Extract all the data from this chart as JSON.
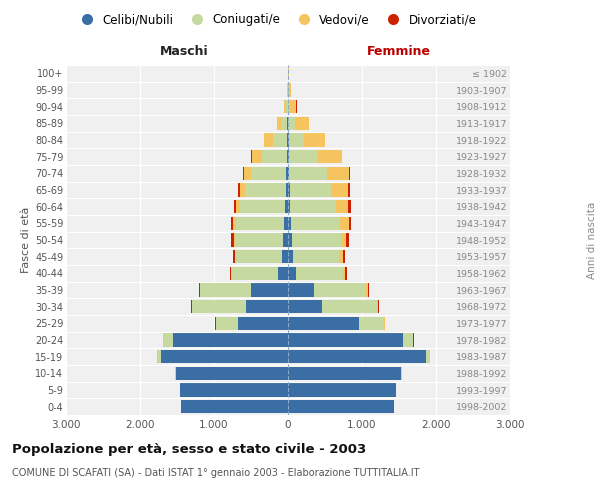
{
  "age_groups": [
    "0-4",
    "5-9",
    "10-14",
    "15-19",
    "20-24",
    "25-29",
    "30-34",
    "35-39",
    "40-44",
    "45-49",
    "50-54",
    "55-59",
    "60-64",
    "65-69",
    "70-74",
    "75-79",
    "80-84",
    "85-89",
    "90-94",
    "95-99",
    "100+"
  ],
  "birth_years": [
    "1998-2002",
    "1993-1997",
    "1988-1992",
    "1983-1987",
    "1978-1982",
    "1973-1977",
    "1968-1972",
    "1963-1967",
    "1958-1962",
    "1953-1957",
    "1948-1952",
    "1943-1947",
    "1938-1942",
    "1933-1937",
    "1928-1932",
    "1923-1927",
    "1918-1922",
    "1913-1917",
    "1908-1912",
    "1903-1907",
    "≤ 1902"
  ],
  "males_celibi": [
    1440,
    1460,
    1510,
    1710,
    1560,
    670,
    570,
    500,
    130,
    80,
    65,
    55,
    40,
    30,
    22,
    18,
    12,
    8,
    5,
    3,
    2
  ],
  "males_coniugati": [
    4,
    5,
    12,
    52,
    125,
    305,
    725,
    685,
    625,
    625,
    645,
    650,
    610,
    545,
    475,
    340,
    185,
    80,
    28,
    10,
    1
  ],
  "males_vedovi": [
    0,
    0,
    0,
    3,
    4,
    4,
    5,
    6,
    12,
    16,
    22,
    32,
    52,
    72,
    92,
    135,
    125,
    58,
    18,
    5,
    0
  ],
  "males_divorziati": [
    0,
    0,
    0,
    1,
    4,
    5,
    6,
    12,
    16,
    26,
    32,
    32,
    25,
    22,
    15,
    10,
    5,
    2,
    1,
    0,
    0
  ],
  "females_nubili": [
    1435,
    1455,
    1525,
    1860,
    1555,
    960,
    455,
    350,
    105,
    65,
    55,
    42,
    30,
    22,
    18,
    14,
    10,
    6,
    4,
    2,
    1
  ],
  "females_coniugate": [
    4,
    5,
    12,
    56,
    132,
    335,
    745,
    705,
    635,
    625,
    655,
    665,
    625,
    565,
    515,
    385,
    200,
    90,
    28,
    10,
    1
  ],
  "females_vedove": [
    0,
    0,
    0,
    4,
    6,
    12,
    16,
    22,
    32,
    52,
    72,
    112,
    162,
    225,
    295,
    325,
    285,
    185,
    82,
    22,
    5
  ],
  "females_divorziate": [
    0,
    0,
    0,
    1,
    4,
    6,
    12,
    16,
    22,
    32,
    36,
    36,
    32,
    26,
    16,
    12,
    5,
    2,
    1,
    0,
    0
  ],
  "colors_celibi": "#3A6EA5",
  "colors_coniugati": "#C5D9A0",
  "colors_vedovi": "#F5C45E",
  "colors_divorziati": "#CC2200",
  "xlim": 3000,
  "xticks": [
    -3000,
    -2000,
    -1000,
    0,
    1000,
    2000,
    3000
  ],
  "title": "Popolazione per età, sesso e stato civile - 2003",
  "subtitle": "COMUNE DI SCAFATI (SA) - Dati ISTAT 1° gennaio 2003 - Elaborazione TUTTITALIA.IT",
  "legend_labels": [
    "Celibi/Nubili",
    "Coniugati/e",
    "Vedovi/e",
    "Divorziati/e"
  ],
  "label_maschi": "Maschi",
  "label_femmine": "Femmine",
  "ylabel_left": "Fasce di età",
  "ylabel_right": "Anni di nascita",
  "bg_color": "#FFFFFF",
  "plot_bg": "#F0F0F0"
}
